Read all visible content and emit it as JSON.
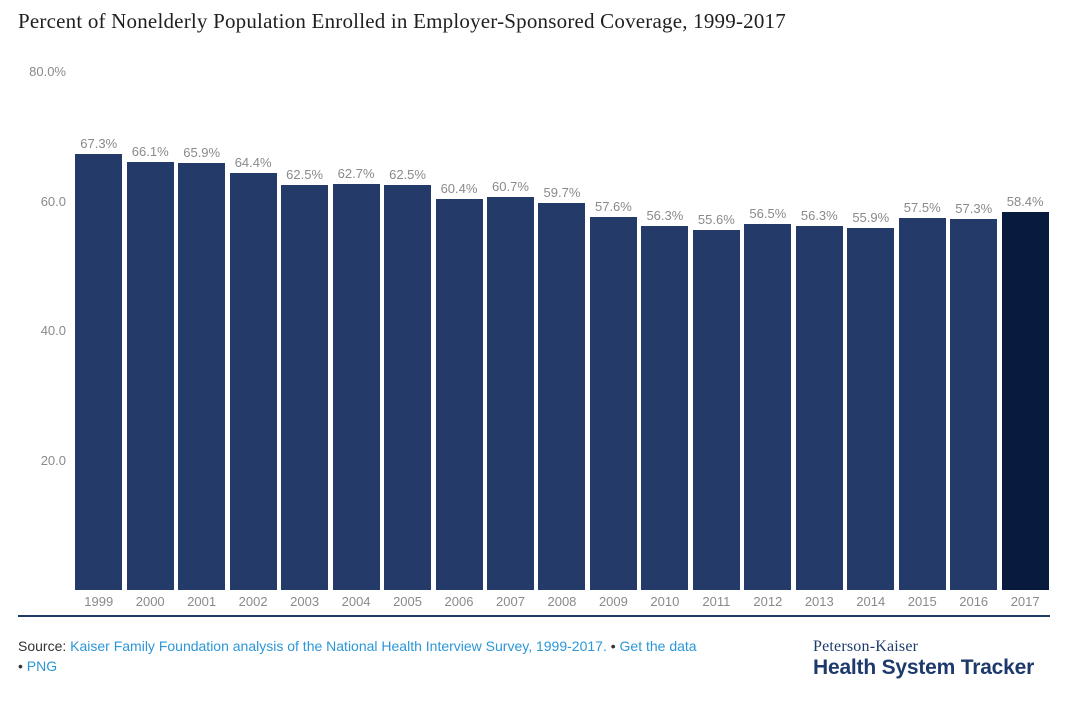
{
  "title": "Percent of Nonelderly Population Enrolled in Employer-Sponsored Coverage, 1999-2017",
  "chart_data": {
    "type": "bar",
    "title": "Percent of Nonelderly Population Enrolled in Employer-Sponsored Coverage, 1999-2017",
    "categories": [
      "1999",
      "2000",
      "2001",
      "2002",
      "2003",
      "2004",
      "2005",
      "2006",
      "2007",
      "2008",
      "2009",
      "2010",
      "2011",
      "2012",
      "2013",
      "2014",
      "2015",
      "2016",
      "2017"
    ],
    "values": [
      67.3,
      66.1,
      65.9,
      64.4,
      62.5,
      62.7,
      62.5,
      60.4,
      60.7,
      59.7,
      57.6,
      56.3,
      55.6,
      56.5,
      56.3,
      55.9,
      57.5,
      57.3,
      58.4
    ],
    "labels": [
      "67.3%",
      "66.1%",
      "65.9%",
      "64.4%",
      "62.5%",
      "62.7%",
      "62.5%",
      "60.4%",
      "60.7%",
      "59.7%",
      "57.6%",
      "56.3%",
      "55.6%",
      "56.5%",
      "56.3%",
      "55.9%",
      "57.5%",
      "57.3%",
      "58.4%"
    ],
    "xlabel": "",
    "ylabel": "",
    "ylim": [
      0,
      80
    ],
    "yticks": [
      {
        "value": 80,
        "label": "80.0%"
      },
      {
        "value": 60,
        "label": "60.0"
      },
      {
        "value": 40,
        "label": "40.0"
      },
      {
        "value": 20,
        "label": "20.0"
      }
    ],
    "grid": false,
    "legend": false,
    "highlight_last_bar": true
  },
  "colors": {
    "bar": "#243a68",
    "bar_highlight": "#081b3f",
    "data_label": "#8a8a8a",
    "tick_label": "#8a8a8a",
    "axis_line": "#1f3a68",
    "title": "#1f1f1f",
    "source_text": "#333333",
    "link": "#2b97d8",
    "logo": "#1e3a6d",
    "background": "#ffffff"
  },
  "footer": {
    "source_label": "Source:",
    "source_link": "Kaiser Family Foundation analysis of the National Health Interview Survey, 1999-2017.",
    "bullet": "•",
    "get_data_link": "Get the data",
    "png_link": "PNG",
    "logo_top": "Peterson-Kaiser",
    "logo_bottom": "Health System Tracker"
  }
}
